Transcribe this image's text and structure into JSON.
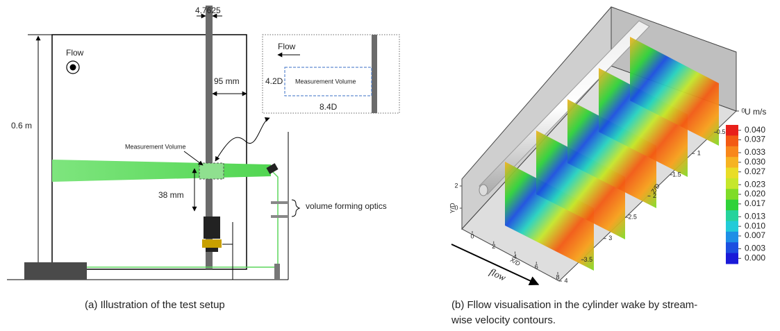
{
  "figure_a": {
    "top_dimension": "4.7625",
    "flow_label": "Flow",
    "height_label": "0.6 m",
    "distance_label": "95 mm",
    "measurement_volume_label": "Measurement Volume",
    "offset_label": "38 mm",
    "optics_label": "volume forming optics",
    "inset": {
      "flow_label": "Flow",
      "height_label": "4.2D",
      "volume_label": "Measurement Volume",
      "width_label": "8.4D"
    },
    "caption": "(a)  Illustration of the test setup"
  },
  "figure_b": {
    "y_axis_label": "Y/D",
    "x_axis_label": "X/D",
    "z_axis_label": "Z/D",
    "flow_label": "flow",
    "xticks": [
      0,
      2,
      4,
      6,
      8
    ],
    "yticks": [
      2,
      0
    ],
    "zticks": [
      0,
      0.5,
      1,
      1.5,
      2,
      2.5,
      3,
      3.5,
      4
    ],
    "colorbar": {
      "title": "U m/s",
      "colors": [
        "#e8201a",
        "#f35a13",
        "#f8871a",
        "#f6b322",
        "#e9dd27",
        "#c6e72b",
        "#7fdc28",
        "#2fd23a",
        "#26d39c",
        "#22cbd8",
        "#1e8fe6",
        "#1c4fe0",
        "#1a1ad8"
      ],
      "ticks": [
        {
          "value": 0.04,
          "label": "0.040"
        },
        {
          "value": 0.037,
          "label": "0.037"
        },
        {
          "value": 0.033,
          "label": "0.033"
        },
        {
          "value": 0.03,
          "label": "0.030"
        },
        {
          "value": 0.027,
          "label": "0.027"
        },
        {
          "value": 0.023,
          "label": "0.023"
        },
        {
          "value": 0.02,
          "label": "0.020"
        },
        {
          "value": 0.017,
          "label": "0.017"
        },
        {
          "value": 0.013,
          "label": "0.013"
        },
        {
          "value": 0.01,
          "label": "0.010"
        },
        {
          "value": 0.007,
          "label": "0.007"
        },
        {
          "value": 0.003,
          "label": "0.003"
        },
        {
          "value": 0,
          "label": "0.000"
        }
      ]
    },
    "caption_line1": "(b)  Fllow visualisation in the cylinder wake by stream-",
    "caption_line2": "wise velocity contours."
  }
}
